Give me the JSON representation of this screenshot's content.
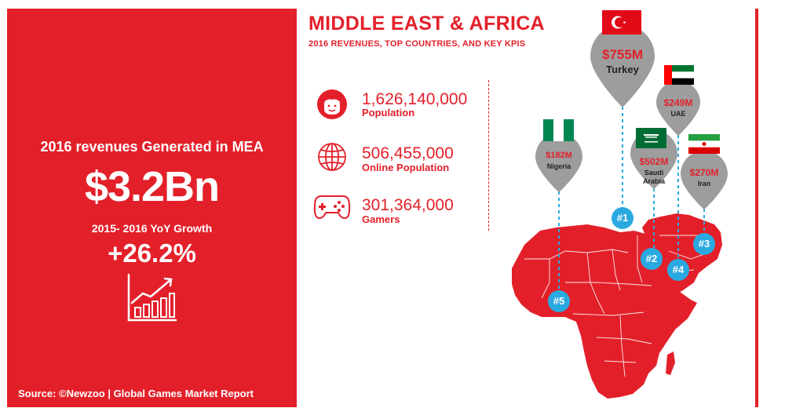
{
  "left_panel": {
    "revenue_label": "2016 revenues Generated in MEA",
    "revenue_value": "$3.2Bn",
    "growth_label": "2015- 2016 YoY Growth",
    "growth_value": "+26.2%",
    "source": "Source: ©Newzoo | Global Games Market Report",
    "chart_icon": "rising-bar-chart-icon"
  },
  "header": {
    "title": "MIDDLE EAST & AFRICA",
    "subtitle": "2016 REVENUES, TOP COUNTRIES, AND KEY KPIS"
  },
  "kpis": [
    {
      "icon": "person-face-icon",
      "value": "1,626,140,000",
      "label": "Population"
    },
    {
      "icon": "globe-icon",
      "value": "506,455,000",
      "label": "Online Population"
    },
    {
      "icon": "gamepad-icon",
      "value": "301,364,000",
      "label": "Gamers"
    }
  ],
  "countries": [
    {
      "rank": "#1",
      "revenue": "$755M",
      "name": "Turkey",
      "flag": "turkey-flag-icon"
    },
    {
      "rank": "#2",
      "revenue": "$502M",
      "name": "Saudi Arabia",
      "name_line1": "Saudi",
      "name_line2": "Arabia",
      "flag": "saudi-arabia-flag-icon"
    },
    {
      "rank": "#3",
      "revenue": "$270M",
      "name": "Iran",
      "flag": "iran-flag-icon"
    },
    {
      "rank": "#4",
      "revenue": "$249M",
      "name": "UAE",
      "flag": "uae-flag-icon"
    },
    {
      "rank": "#5",
      "revenue": "$182M",
      "name": "Nigeria",
      "flag": "nigeria-flag-icon"
    }
  ],
  "colors": {
    "brand_red": "#e3202a",
    "pin_gray": "#9d9d9d",
    "rank_blue": "#29a9e0",
    "map_red": "#e3202a"
  }
}
